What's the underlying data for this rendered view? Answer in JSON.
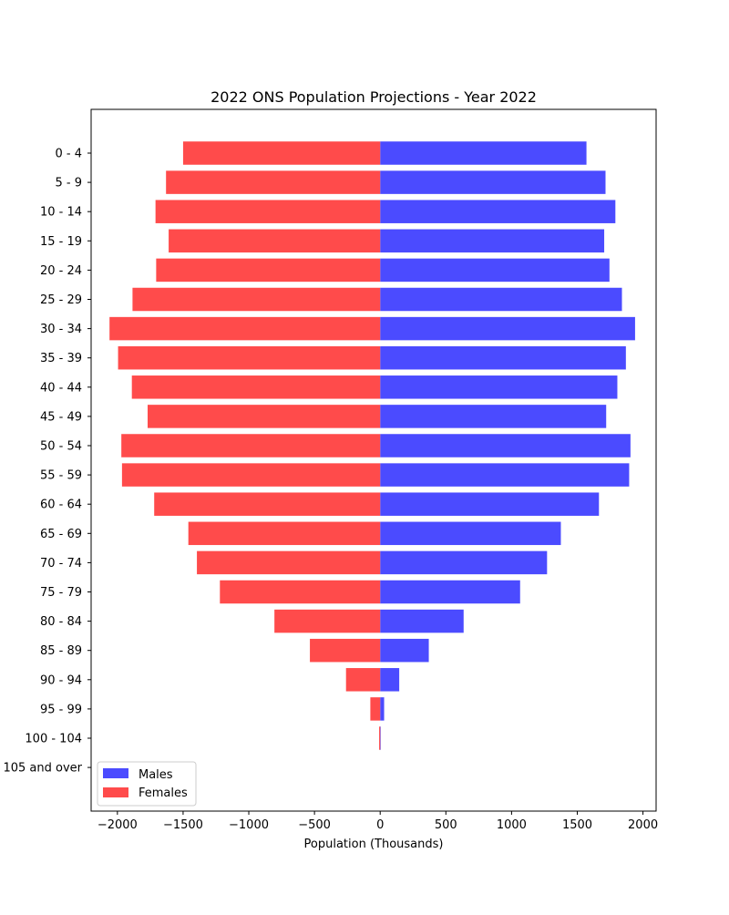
{
  "chart_data": {
    "type": "bar",
    "orientation": "horizontal",
    "title": "2022 ONS Population Projections - Year 2022",
    "xlabel": "Population (Thousands)",
    "ylabel": "",
    "xlim": [
      -2200,
      2100
    ],
    "xticks": [
      -2000,
      -1500,
      -1000,
      -500,
      0,
      500,
      1000,
      1500,
      2000
    ],
    "xtick_labels": [
      "−2000",
      "−1500",
      "−1000",
      "−500",
      "0",
      "500",
      "1000",
      "1500",
      "2000"
    ],
    "categories": [
      "0 - 4",
      "5 - 9",
      "10 - 14",
      "15 - 19",
      "20 - 24",
      "25 - 29",
      "30 - 34",
      "35 - 39",
      "40 - 44",
      "45 - 49",
      "50 - 54",
      "55 - 59",
      "60 - 64",
      "65 - 69",
      "70 - 74",
      "75 - 79",
      "80 - 84",
      "85 - 89",
      "90 - 94",
      "95 - 99",
      "100 - 104",
      "105 and over"
    ],
    "series": [
      {
        "name": "Males",
        "color": "#4b4bff",
        "values": [
          1570,
          1715,
          1790,
          1705,
          1745,
          1840,
          1940,
          1870,
          1805,
          1720,
          1905,
          1895,
          1665,
          1375,
          1270,
          1065,
          635,
          370,
          145,
          30,
          1,
          0
        ]
      },
      {
        "name": "Females",
        "color": "#ff4b4b",
        "values": [
          -1500,
          -1630,
          -1710,
          -1610,
          -1705,
          -1885,
          -2060,
          -1995,
          -1890,
          -1770,
          -1970,
          -1965,
          -1720,
          -1460,
          -1395,
          -1220,
          -805,
          -535,
          -260,
          -75,
          -8,
          0
        ]
      }
    ],
    "grid": false,
    "legend_position": "lower-left"
  }
}
